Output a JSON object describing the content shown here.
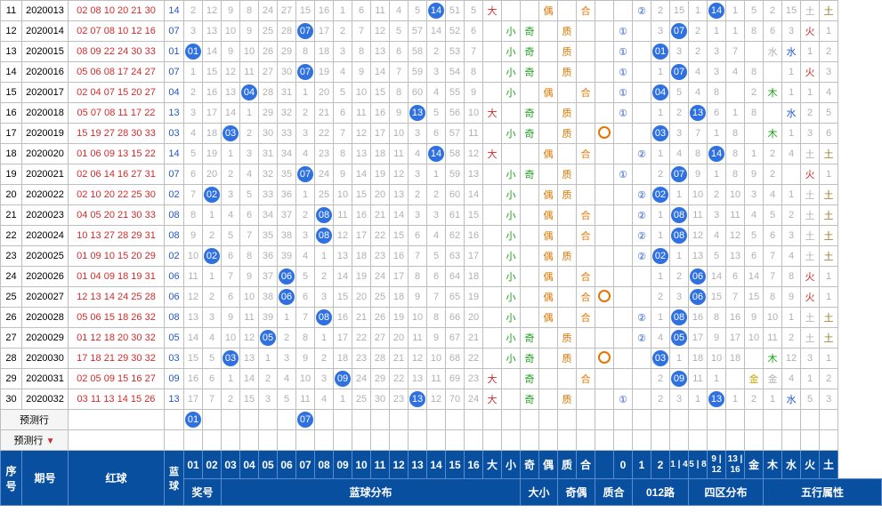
{
  "rows": [
    {
      "seq": "11",
      "period": "2020013",
      "reds": "02 08 10 20 21 30",
      "blue": "14",
      "nums": [
        "2",
        "12",
        "9",
        "8",
        "24",
        "27",
        "15",
        "16",
        "1",
        "6",
        "11",
        "4",
        "5",
        "B14",
        "51",
        "5"
      ],
      "sz": [
        "大",
        "",
        "",
        "偶",
        "",
        "合",
        ""
      ],
      "o12": [
        "",
        "②",
        "2",
        "15",
        "1",
        "B14",
        "1",
        "5",
        "2",
        "15",
        "土",
        "1"
      ],
      "w": "土",
      "wc": "brown-txt"
    },
    {
      "seq": "12",
      "period": "2020014",
      "reds": "02 07 08 10 12 16",
      "blue": "07",
      "nums": [
        "3",
        "13",
        "10",
        "9",
        "25",
        "28",
        "B07",
        "17",
        "2",
        "7",
        "12",
        "5",
        "57",
        "14",
        "52",
        "6"
      ],
      "sz": [
        "",
        "小",
        "奇",
        "",
        "质",
        "",
        ""
      ],
      "o12": [
        "①",
        "",
        "3",
        "B07",
        "2",
        "1",
        "1",
        "8",
        "6",
        "3",
        "火",
        "1"
      ],
      "w": "火",
      "wc": "red-txt"
    },
    {
      "seq": "13",
      "period": "2020015",
      "reds": "08 09 22 24 30 33",
      "blue": "01",
      "nums": [
        "B01",
        "14",
        "9",
        "10",
        "26",
        "29",
        "8",
        "18",
        "3",
        "8",
        "13",
        "6",
        "58",
        "2",
        "53",
        "7"
      ],
      "sz": [
        "",
        "小",
        "奇",
        "",
        "质",
        "",
        ""
      ],
      "o12": [
        "①",
        "",
        "B01",
        "3",
        "2",
        "3",
        "7",
        "",
        "水",
        "1",
        "1",
        "2"
      ],
      "w": "水",
      "wc": "blue-txt"
    },
    {
      "seq": "14",
      "period": "2020016",
      "reds": "05 06 08 17 24 27",
      "blue": "07",
      "nums": [
        "1",
        "15",
        "12",
        "11",
        "27",
        "30",
        "B07",
        "19",
        "4",
        "9",
        "14",
        "7",
        "59",
        "3",
        "54",
        "8"
      ],
      "sz": [
        "",
        "小",
        "奇",
        "",
        "质",
        "",
        ""
      ],
      "o12": [
        "①",
        "",
        "1",
        "B07",
        "4",
        "3",
        "4",
        "8",
        "",
        "1",
        "火",
        "3"
      ],
      "w": "火",
      "wc": "red-txt"
    },
    {
      "seq": "15",
      "period": "2020017",
      "reds": "02 04 07 15 20 27",
      "blue": "04",
      "nums": [
        "2",
        "16",
        "13",
        "B04",
        "28",
        "31",
        "1",
        "20",
        "5",
        "10",
        "15",
        "8",
        "60",
        "4",
        "55",
        "9"
      ],
      "sz": [
        "",
        "小",
        "",
        "偶",
        "",
        "合",
        ""
      ],
      "o12": [
        "①",
        "",
        "B04",
        "5",
        "4",
        "8",
        "",
        "2",
        "木",
        "1",
        "1",
        "4"
      ],
      "w": "木",
      "wc": "green-txt"
    },
    {
      "seq": "16",
      "period": "2020018",
      "reds": "05 07 08 11 17 22",
      "blue": "13",
      "nums": [
        "3",
        "17",
        "14",
        "1",
        "29",
        "32",
        "2",
        "21",
        "6",
        "11",
        "16",
        "9",
        "B13",
        "5",
        "56",
        "10"
      ],
      "sz": [
        "大",
        "",
        "奇",
        "",
        "质",
        "",
        ""
      ],
      "o12": [
        "①",
        "",
        "1",
        "2",
        "B13",
        "6",
        "1",
        "8",
        "",
        "水",
        "2",
        "5"
      ],
      "w": "水",
      "wc": "blue-txt"
    },
    {
      "seq": "17",
      "period": "2020019",
      "reds": "15 19 27 28 30 33",
      "blue": "03",
      "nums": [
        "4",
        "18",
        "B03",
        "2",
        "30",
        "33",
        "3",
        "22",
        "7",
        "12",
        "17",
        "10",
        "3",
        "6",
        "57",
        "11"
      ],
      "sz": [
        "",
        "小",
        "奇",
        "",
        "质",
        "",
        "R"
      ],
      "o12": [
        "",
        "",
        "B03",
        "3",
        "7",
        "1",
        "8",
        "",
        "木",
        "1",
        "3",
        "6"
      ],
      "w": "木",
      "wc": "green-txt"
    },
    {
      "seq": "18",
      "period": "2020020",
      "reds": "01 06 09 13 15 22",
      "blue": "14",
      "nums": [
        "5",
        "19",
        "1",
        "3",
        "31",
        "34",
        "4",
        "23",
        "8",
        "13",
        "18",
        "11",
        "4",
        "B14",
        "58",
        "12"
      ],
      "sz": [
        "大",
        "",
        "",
        "偶",
        "",
        "合",
        ""
      ],
      "o12": [
        "",
        "②",
        "1",
        "4",
        "8",
        "B14",
        "8",
        "1",
        "2",
        "4",
        "土",
        "1"
      ],
      "w": "土",
      "wc": "brown-txt"
    },
    {
      "seq": "19",
      "period": "2020021",
      "reds": "02 06 14 16 27 31",
      "blue": "07",
      "nums": [
        "6",
        "20",
        "2",
        "4",
        "32",
        "35",
        "B07",
        "24",
        "9",
        "14",
        "19",
        "12",
        "3",
        "1",
        "59",
        "13"
      ],
      "sz": [
        "",
        "小",
        "奇",
        "",
        "质",
        "",
        ""
      ],
      "o12": [
        "①",
        "",
        "2",
        "B07",
        "9",
        "1",
        "8",
        "9",
        "2",
        "",
        "火",
        "1"
      ],
      "w": "火",
      "wc": "red-txt",
      "dashed": true
    },
    {
      "seq": "20",
      "period": "2020022",
      "reds": "02 10 20 22 25 30",
      "blue": "02",
      "nums": [
        "7",
        "B02",
        "3",
        "5",
        "33",
        "36",
        "1",
        "25",
        "10",
        "15",
        "20",
        "13",
        "2",
        "2",
        "60",
        "14"
      ],
      "sz": [
        "",
        "小",
        "",
        "偶",
        "质",
        "",
        ""
      ],
      "o12": [
        "",
        "②",
        "B02",
        "1",
        "10",
        "2",
        "10",
        "3",
        "4",
        "1",
        "土",
        "1"
      ],
      "w": "土",
      "wc": "brown-txt"
    },
    {
      "seq": "21",
      "period": "2020023",
      "reds": "04 05 20 21 30 33",
      "blue": "08",
      "nums": [
        "8",
        "1",
        "4",
        "6",
        "34",
        "37",
        "2",
        "B08",
        "11",
        "16",
        "21",
        "14",
        "3",
        "3",
        "61",
        "15"
      ],
      "sz": [
        "",
        "小",
        "",
        "偶",
        "",
        "合",
        ""
      ],
      "o12": [
        "",
        "②",
        "1",
        "B08",
        "11",
        "3",
        "11",
        "4",
        "5",
        "2",
        "土",
        "1"
      ],
      "w": "土",
      "wc": "brown-txt"
    },
    {
      "seq": "22",
      "period": "2020024",
      "reds": "10 13 27 28 29 31",
      "blue": "08",
      "nums": [
        "9",
        "2",
        "5",
        "7",
        "35",
        "38",
        "3",
        "B08",
        "12",
        "17",
        "22",
        "15",
        "6",
        "4",
        "62",
        "16"
      ],
      "sz": [
        "",
        "小",
        "",
        "偶",
        "",
        "合",
        ""
      ],
      "o12": [
        "",
        "②",
        "1",
        "B08",
        "12",
        "4",
        "12",
        "5",
        "6",
        "3",
        "土",
        "1"
      ],
      "w": "土",
      "wc": "brown-txt"
    },
    {
      "seq": "23",
      "period": "2020025",
      "reds": "01 09 10 15 20 29",
      "blue": "02",
      "nums": [
        "10",
        "B02",
        "6",
        "8",
        "36",
        "39",
        "4",
        "1",
        "13",
        "18",
        "23",
        "16",
        "7",
        "5",
        "63",
        "17"
      ],
      "sz": [
        "",
        "小",
        "",
        "偶",
        "质",
        "",
        ""
      ],
      "o12": [
        "",
        "②",
        "B02",
        "1",
        "13",
        "5",
        "13",
        "6",
        "7",
        "4",
        "土",
        "1"
      ],
      "w": "土",
      "wc": "brown-txt"
    },
    {
      "seq": "24",
      "period": "2020026",
      "reds": "01 04 09 18 19 31",
      "blue": "06",
      "nums": [
        "11",
        "1",
        "7",
        "9",
        "37",
        "B06",
        "5",
        "2",
        "14",
        "19",
        "24",
        "17",
        "8",
        "6",
        "64",
        "18"
      ],
      "sz": [
        "",
        "小",
        "",
        "偶",
        "",
        "合",
        ""
      ],
      "o12": [
        "",
        "",
        "1",
        "2",
        "B06",
        "14",
        "6",
        "14",
        "7",
        "8",
        "火",
        "1"
      ],
      "w": "火",
      "wc": "red-txt",
      "dashed": true
    },
    {
      "seq": "25",
      "period": "2020027",
      "reds": "12 13 14 24 25 28",
      "blue": "06",
      "nums": [
        "12",
        "2",
        "6",
        "10",
        "38",
        "B06",
        "6",
        "3",
        "15",
        "20",
        "25",
        "18",
        "9",
        "7",
        "65",
        "19"
      ],
      "sz": [
        "",
        "小",
        "",
        "偶",
        "",
        "合",
        "R"
      ],
      "o12": [
        "",
        "",
        "2",
        "3",
        "B06",
        "15",
        "7",
        "15",
        "8",
        "9",
        "火",
        "1"
      ],
      "w": "火",
      "wc": "red-txt"
    },
    {
      "seq": "26",
      "period": "2020028",
      "reds": "05 06 15 18 26 32",
      "blue": "08",
      "nums": [
        "13",
        "3",
        "9",
        "11",
        "39",
        "1",
        "7",
        "B08",
        "16",
        "21",
        "26",
        "19",
        "10",
        "8",
        "66",
        "20"
      ],
      "sz": [
        "",
        "小",
        "",
        "偶",
        "",
        "合",
        ""
      ],
      "o12": [
        "",
        "②",
        "1",
        "B08",
        "16",
        "8",
        "16",
        "9",
        "10",
        "1",
        "土",
        "1"
      ],
      "w": "土",
      "wc": "brown-txt"
    },
    {
      "seq": "27",
      "period": "2020029",
      "reds": "01 12 18 20 30 32",
      "blue": "05",
      "nums": [
        "14",
        "4",
        "10",
        "12",
        "B05",
        "2",
        "8",
        "1",
        "17",
        "22",
        "27",
        "20",
        "11",
        "9",
        "67",
        "21"
      ],
      "sz": [
        "",
        "小",
        "奇",
        "",
        "质",
        "",
        ""
      ],
      "o12": [
        "",
        "②",
        "4",
        "B05",
        "17",
        "9",
        "17",
        "10",
        "11",
        "2",
        "土",
        "1"
      ],
      "w": "土",
      "wc": "brown-txt"
    },
    {
      "seq": "28",
      "period": "2020030",
      "reds": "17 18 21 29 30 32",
      "blue": "03",
      "nums": [
        "15",
        "5",
        "B03",
        "13",
        "1",
        "3",
        "9",
        "2",
        "18",
        "23",
        "28",
        "21",
        "12",
        "10",
        "68",
        "22"
      ],
      "sz": [
        "",
        "小",
        "奇",
        "",
        "质",
        "",
        "R"
      ],
      "o12": [
        "",
        "",
        "B03",
        "1",
        "18",
        "10",
        "18",
        "",
        "木",
        "12",
        "3",
        "1"
      ],
      "w": "木",
      "wc": "green-txt"
    },
    {
      "seq": "29",
      "period": "2020031",
      "reds": "02 05 09 15 16 27",
      "blue": "09",
      "nums": [
        "16",
        "6",
        "1",
        "14",
        "2",
        "4",
        "10",
        "3",
        "B09",
        "24",
        "29",
        "22",
        "13",
        "11",
        "69",
        "23"
      ],
      "sz": [
        "大",
        "",
        "奇",
        "",
        "",
        "合",
        ""
      ],
      "o12": [
        "",
        "",
        "2",
        "B09",
        "11",
        "1",
        "",
        "13",
        "金",
        "4",
        "1",
        "2"
      ],
      "w": "金",
      "wc": "gold-txt",
      "dashed": true
    },
    {
      "seq": "30",
      "period": "2020032",
      "reds": "03 11 13 14 15 26",
      "blue": "13",
      "nums": [
        "17",
        "7",
        "2",
        "15",
        "3",
        "5",
        "11",
        "4",
        "1",
        "25",
        "30",
        "23",
        "B13",
        "12",
        "70",
        "24"
      ],
      "sz": [
        "大",
        "",
        "奇",
        "",
        "质",
        "",
        ""
      ],
      "o12": [
        "①",
        "",
        "2",
        "3",
        "1",
        "B13",
        "1",
        "2",
        "1",
        "水",
        "5",
        "3"
      ],
      "w": "水",
      "wc": "blue-txt"
    }
  ],
  "pred_label": "预测行",
  "pred_balls": {
    "c1": "01",
    "c7": "07"
  },
  "header": {
    "seq": "序号",
    "period": "期号",
    "reds": "红球",
    "blue": "蓝球",
    "nums": [
      "01",
      "02",
      "03",
      "04",
      "05",
      "06",
      "07",
      "08",
      "09",
      "10",
      "11",
      "12",
      "13",
      "14",
      "15",
      "16"
    ],
    "sz": [
      "大",
      "小",
      "奇",
      "偶",
      "质",
      "合"
    ],
    "o12": [
      "0",
      "1",
      "2"
    ],
    "sifen": [
      "1 | 4",
      "5 | 8",
      "9 | 12",
      "13 | 16"
    ],
    "wuxing": [
      "金",
      "木",
      "水",
      "火",
      "土"
    ]
  },
  "header2": {
    "jiang": "奖号",
    "lanfen": "蓝球分布",
    "dx": "大小",
    "jo": "奇偶",
    "zh": "质合",
    "o12": "012路",
    "sifen": "四区分布",
    "wuxing": "五行属性"
  },
  "colors": {
    "大": "red-txt",
    "小": "green-txt",
    "奇": "green-txt",
    "偶": "orange-txt",
    "质": "orange-txt",
    "合": "orange-txt"
  }
}
